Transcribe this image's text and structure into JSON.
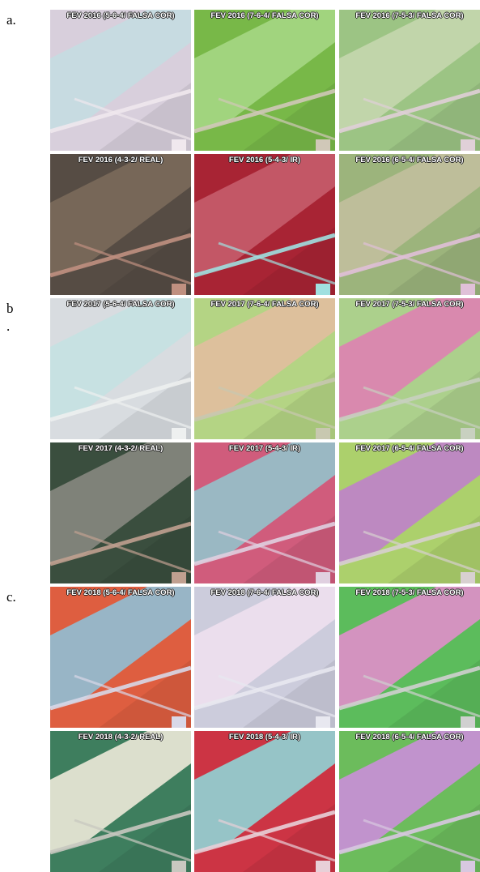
{
  "groups": [
    {
      "label": "a.",
      "panels": [
        "FEV 2016 (5-6-4/ FALSA COR)",
        "FEV 2016 (7-6-4/ FALSA COR)",
        "FEV 2016 (7-5-3/ FALSA COR)",
        "FEV 2016 (4-3-2/ REAL)",
        "FEV 2016 (5-4-3/ IR)",
        "FEV 2016 (6-5-4/ FALSA COR)"
      ]
    },
    {
      "label": "b\n.",
      "panels": [
        "FEV 2017 (5-6-4/ FALSA COR)",
        "FEV 2017 (7-6-4/ FALSA COR)",
        "FEV 2017 (7-5-3/ FALSA COR)",
        "FEV 2017 (4-3-2/ REAL)",
        "FEV 2017 (5-4-3/ IR)",
        "FEV 2017 (6-5-4/ FALSA COR)"
      ]
    },
    {
      "label": "c.",
      "panels": [
        "FEV 2018 (5-6-4/ FALSA COR)",
        "FEV 2018 (7-6-4/ FALSA COR)",
        "FEV 2018 (7-5-3/ FALSA COR)",
        "FEV 2018 (4-3-2/ REAL)",
        "FEV 2018 (5-4-3/ IR)",
        "FEV 2018 (6-5-4/ FALSA COR)"
      ]
    }
  ]
}
